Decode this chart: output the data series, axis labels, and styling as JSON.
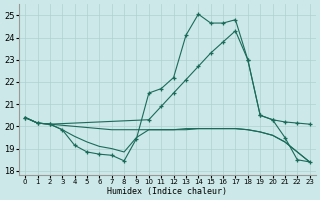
{
  "xlabel": "Humidex (Indice chaleur)",
  "bg_color": "#cce8e8",
  "grid_color": "#b0d0d0",
  "line_color": "#1a6b5a",
  "xlim": [
    -0.5,
    23.5
  ],
  "ylim": [
    17.8,
    25.5
  ],
  "yticks": [
    18,
    19,
    20,
    21,
    22,
    23,
    24,
    25
  ],
  "xticks": [
    0,
    1,
    2,
    3,
    4,
    5,
    6,
    7,
    8,
    9,
    10,
    11,
    12,
    13,
    14,
    15,
    16,
    17,
    18,
    19,
    20,
    21,
    22,
    23
  ],
  "line1_x": [
    0,
    1,
    2,
    3,
    4,
    5,
    6,
    7,
    8,
    9,
    10,
    11,
    12,
    13,
    14,
    15,
    16,
    17,
    18,
    19,
    20,
    21,
    22,
    23
  ],
  "line1_y": [
    20.4,
    20.15,
    20.1,
    19.85,
    19.15,
    18.85,
    18.75,
    18.7,
    18.45,
    19.45,
    21.5,
    21.7,
    22.2,
    24.1,
    25.05,
    24.65,
    24.65,
    24.8,
    23.0,
    20.5,
    20.3,
    19.5,
    18.5,
    18.4
  ],
  "line2_x": [
    0,
    1,
    2,
    10,
    11,
    12,
    13,
    14,
    15,
    16,
    17,
    18,
    19,
    20,
    21,
    22,
    23
  ],
  "line2_y": [
    20.4,
    20.15,
    20.1,
    20.3,
    20.9,
    21.5,
    22.1,
    22.7,
    23.3,
    23.8,
    24.3,
    23.0,
    20.5,
    20.3,
    20.2,
    20.15,
    20.1
  ],
  "line3_x": [
    0,
    1,
    2,
    3,
    4,
    5,
    6,
    7,
    8,
    9,
    10,
    11,
    12,
    13,
    14,
    15,
    16,
    17,
    18,
    19,
    20,
    21,
    22,
    23
  ],
  "line3_y": [
    20.4,
    20.15,
    20.1,
    20.05,
    20.0,
    19.95,
    19.9,
    19.85,
    19.85,
    19.85,
    19.85,
    19.85,
    19.85,
    19.85,
    19.9,
    19.9,
    19.9,
    19.9,
    19.85,
    19.75,
    19.6,
    19.3,
    18.85,
    18.4
  ],
  "line4_x": [
    0,
    1,
    2,
    3,
    4,
    5,
    6,
    7,
    8,
    9,
    10,
    11,
    12,
    13,
    14,
    15,
    16,
    17,
    18,
    19,
    20,
    21,
    22,
    23
  ],
  "line4_y": [
    20.4,
    20.15,
    20.1,
    19.85,
    19.55,
    19.3,
    19.1,
    19.0,
    18.85,
    19.5,
    19.85,
    19.85,
    19.85,
    19.9,
    19.9,
    19.9,
    19.9,
    19.9,
    19.85,
    19.75,
    19.6,
    19.3,
    18.85,
    18.4
  ]
}
